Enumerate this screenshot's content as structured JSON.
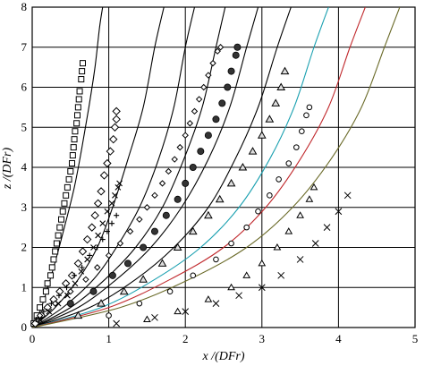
{
  "chart_data": {
    "type": "scatter",
    "title": "",
    "xlabel": "x /(DFr)",
    "ylabel": "z /(DFr)",
    "xlim": [
      0,
      5
    ],
    "ylim": [
      0,
      8
    ],
    "x_ticks": [
      "0",
      "1",
      "2",
      "3",
      "4",
      "5"
    ],
    "y_ticks": [
      "0",
      "1",
      "2",
      "3",
      "4",
      "5",
      "6",
      "7",
      "8"
    ],
    "grid": true,
    "legend": "none",
    "curves": [
      {
        "color": "#000000",
        "x": [
          0,
          0.12,
          0.28,
          0.42,
          0.55,
          0.65,
          0.74,
          0.82,
          0.88,
          0.92
        ],
        "y": [
          0,
          0.5,
          1.5,
          2.5,
          3.5,
          4.5,
          5.5,
          6.5,
          7.5,
          8
        ]
      },
      {
        "color": "#000000",
        "x": [
          0,
          0.3,
          0.6,
          0.85,
          1.05,
          1.25,
          1.45,
          1.6,
          1.72
        ],
        "y": [
          0,
          0.5,
          1.2,
          2.0,
          3.0,
          4.2,
          5.5,
          7.0,
          8
        ]
      },
      {
        "color": "#000000",
        "x": [
          0,
          0.4,
          0.8,
          1.1,
          1.4,
          1.65,
          1.85,
          2.0,
          2.12
        ],
        "y": [
          0,
          0.5,
          1.2,
          2.0,
          3.0,
          4.2,
          5.5,
          7.0,
          8
        ]
      },
      {
        "color": "#000000",
        "x": [
          0,
          0.5,
          0.95,
          1.35,
          1.7,
          1.98,
          2.22,
          2.4,
          2.52
        ],
        "y": [
          0,
          0.5,
          1.2,
          2.0,
          3.0,
          4.2,
          5.5,
          7.0,
          8
        ]
      },
      {
        "color": "#000000",
        "x": [
          0,
          0.6,
          1.1,
          1.55,
          1.95,
          2.3,
          2.58,
          2.8,
          2.95
        ],
        "y": [
          0,
          0.5,
          1.2,
          2.0,
          3.0,
          4.2,
          5.5,
          7.0,
          8
        ]
      },
      {
        "color": "#000000",
        "x": [
          0,
          0.75,
          1.35,
          1.85,
          2.3,
          2.65,
          2.95,
          3.2,
          3.38
        ],
        "y": [
          0,
          0.5,
          1.2,
          2.0,
          3.0,
          4.2,
          5.5,
          7.0,
          8
        ]
      },
      {
        "color": "#1aa0b0",
        "x": [
          0,
          0.9,
          1.6,
          2.2,
          2.7,
          3.1,
          3.42,
          3.68,
          3.87
        ],
        "y": [
          0,
          0.5,
          1.2,
          2.0,
          3.0,
          4.2,
          5.5,
          7.0,
          8
        ]
      },
      {
        "color": "#c0282c",
        "x": [
          0,
          1.0,
          1.8,
          2.5,
          3.05,
          3.5,
          3.87,
          4.15,
          4.35
        ],
        "y": [
          0,
          0.5,
          1.2,
          2.0,
          3.0,
          4.2,
          5.5,
          7.0,
          8
        ]
      },
      {
        "color": "#6b6b2a",
        "x": [
          0,
          1.15,
          2.05,
          2.8,
          3.4,
          3.9,
          4.3,
          4.6,
          4.8
        ],
        "y": [
          0,
          0.5,
          1.2,
          2.0,
          3.0,
          4.2,
          5.5,
          7.0,
          8
        ]
      }
    ],
    "series": [
      {
        "marker": "square",
        "points": [
          [
            0.02,
            0.1
          ],
          [
            0.06,
            0.3
          ],
          [
            0.1,
            0.5
          ],
          [
            0.14,
            0.7
          ],
          [
            0.18,
            0.9
          ],
          [
            0.2,
            1.1
          ],
          [
            0.24,
            1.3
          ],
          [
            0.26,
            1.5
          ],
          [
            0.28,
            1.7
          ],
          [
            0.3,
            1.9
          ],
          [
            0.32,
            2.1
          ],
          [
            0.34,
            2.3
          ],
          [
            0.36,
            2.5
          ],
          [
            0.38,
            2.7
          ],
          [
            0.4,
            2.9
          ],
          [
            0.42,
            3.1
          ],
          [
            0.44,
            3.3
          ],
          [
            0.46,
            3.5
          ],
          [
            0.48,
            3.7
          ],
          [
            0.5,
            3.9
          ],
          [
            0.52,
            4.1
          ],
          [
            0.53,
            4.3
          ],
          [
            0.54,
            4.5
          ],
          [
            0.55,
            4.7
          ],
          [
            0.56,
            4.9
          ],
          [
            0.58,
            5.1
          ],
          [
            0.59,
            5.3
          ],
          [
            0.6,
            5.5
          ],
          [
            0.61,
            5.7
          ],
          [
            0.62,
            5.9
          ],
          [
            0.64,
            6.2
          ],
          [
            0.65,
            6.4
          ],
          [
            0.66,
            6.6
          ]
        ]
      },
      {
        "marker": "diamond",
        "points": [
          [
            0.04,
            0.1
          ],
          [
            0.12,
            0.3
          ],
          [
            0.2,
            0.5
          ],
          [
            0.28,
            0.7
          ],
          [
            0.36,
            0.9
          ],
          [
            0.44,
            1.1
          ],
          [
            0.52,
            1.3
          ],
          [
            0.6,
            1.6
          ],
          [
            0.66,
            1.9
          ],
          [
            0.72,
            2.2
          ],
          [
            0.78,
            2.5
          ],
          [
            0.82,
            2.8
          ],
          [
            0.86,
            3.1
          ],
          [
            0.9,
            3.4
          ],
          [
            0.94,
            3.8
          ],
          [
            0.98,
            4.1
          ],
          [
            1.02,
            4.4
          ],
          [
            1.06,
            4.7
          ],
          [
            1.08,
            5.0
          ],
          [
            1.1,
            5.2
          ],
          [
            1.1,
            5.4
          ]
        ]
      },
      {
        "marker": "x",
        "points": [
          [
            0.1,
            0.2
          ],
          [
            0.22,
            0.4
          ],
          [
            0.34,
            0.6
          ],
          [
            0.46,
            0.8
          ],
          [
            0.56,
            1.1
          ],
          [
            0.64,
            1.4
          ],
          [
            0.72,
            1.7
          ],
          [
            0.8,
            2.0
          ],
          [
            0.86,
            2.3
          ],
          [
            0.92,
            2.6
          ],
          [
            0.98,
            2.9
          ],
          [
            1.04,
            3.1
          ],
          [
            1.08,
            3.3
          ],
          [
            1.12,
            3.5
          ],
          [
            1.14,
            3.6
          ]
        ]
      },
      {
        "marker": "plus",
        "points": [
          [
            0.05,
            0.2
          ],
          [
            0.15,
            0.4
          ],
          [
            0.25,
            0.6
          ],
          [
            0.35,
            0.8
          ],
          [
            0.45,
            1.0
          ],
          [
            0.55,
            1.3
          ],
          [
            0.65,
            1.5
          ],
          [
            0.75,
            1.8
          ],
          [
            0.85,
            2.0
          ],
          [
            0.92,
            2.2
          ],
          [
            0.98,
            2.4
          ],
          [
            1.04,
            2.6
          ],
          [
            1.1,
            2.8
          ]
        ]
      },
      {
        "marker": "small-diamond",
        "points": [
          [
            0.1,
            0.3
          ],
          [
            0.3,
            0.6
          ],
          [
            0.5,
            0.9
          ],
          [
            0.7,
            1.2
          ],
          [
            0.85,
            1.5
          ],
          [
            1.0,
            1.8
          ],
          [
            1.15,
            2.1
          ],
          [
            1.28,
            2.4
          ],
          [
            1.4,
            2.7
          ],
          [
            1.5,
            3.0
          ],
          [
            1.6,
            3.3
          ],
          [
            1.7,
            3.6
          ],
          [
            1.78,
            3.9
          ],
          [
            1.86,
            4.2
          ],
          [
            1.93,
            4.5
          ],
          [
            2.0,
            4.8
          ],
          [
            2.06,
            5.1
          ],
          [
            2.12,
            5.4
          ],
          [
            2.18,
            5.7
          ],
          [
            2.24,
            6.0
          ],
          [
            2.3,
            6.3
          ],
          [
            2.36,
            6.6
          ],
          [
            2.42,
            6.9
          ],
          [
            2.46,
            7.0
          ]
        ]
      },
      {
        "marker": "circle-filled",
        "points": [
          [
            0.5,
            0.6
          ],
          [
            0.8,
            0.9
          ],
          [
            1.05,
            1.3
          ],
          [
            1.25,
            1.6
          ],
          [
            1.45,
            2.0
          ],
          [
            1.6,
            2.4
          ],
          [
            1.75,
            2.8
          ],
          [
            1.9,
            3.2
          ],
          [
            2.0,
            3.6
          ],
          [
            2.1,
            4.0
          ],
          [
            2.2,
            4.4
          ],
          [
            2.3,
            4.8
          ],
          [
            2.4,
            5.2
          ],
          [
            2.48,
            5.6
          ],
          [
            2.55,
            6.0
          ],
          [
            2.6,
            6.4
          ],
          [
            2.66,
            6.8
          ],
          [
            2.68,
            7.0
          ]
        ]
      },
      {
        "marker": "triangle",
        "points": [
          [
            0.6,
            0.3
          ],
          [
            0.9,
            0.6
          ],
          [
            1.2,
            0.9
          ],
          [
            1.45,
            1.2
          ],
          [
            1.7,
            1.6
          ],
          [
            1.9,
            2.0
          ],
          [
            2.1,
            2.4
          ],
          [
            2.3,
            2.8
          ],
          [
            2.45,
            3.2
          ],
          [
            2.6,
            3.6
          ],
          [
            2.75,
            4.0
          ],
          [
            2.88,
            4.4
          ],
          [
            3.0,
            4.8
          ],
          [
            3.1,
            5.2
          ],
          [
            3.18,
            5.6
          ],
          [
            3.25,
            6.0
          ],
          [
            3.3,
            6.4
          ]
        ]
      },
      {
        "marker": "circle-open",
        "points": [
          [
            1.0,
            0.3
          ],
          [
            1.4,
            0.6
          ],
          [
            1.8,
            0.9
          ],
          [
            2.1,
            1.3
          ],
          [
            2.4,
            1.7
          ],
          [
            2.6,
            2.1
          ],
          [
            2.8,
            2.5
          ],
          [
            2.95,
            2.9
          ],
          [
            3.1,
            3.3
          ],
          [
            3.22,
            3.7
          ],
          [
            3.35,
            4.1
          ],
          [
            3.45,
            4.5
          ],
          [
            3.52,
            4.9
          ],
          [
            3.58,
            5.3
          ],
          [
            3.62,
            5.5
          ]
        ]
      },
      {
        "marker": "triangle-small",
        "points": [
          [
            1.5,
            0.2
          ],
          [
            1.9,
            0.4
          ],
          [
            2.3,
            0.7
          ],
          [
            2.6,
            1.0
          ],
          [
            2.8,
            1.3
          ],
          [
            3.0,
            1.6
          ],
          [
            3.2,
            2.0
          ],
          [
            3.35,
            2.4
          ],
          [
            3.5,
            2.8
          ],
          [
            3.62,
            3.2
          ],
          [
            3.68,
            3.5
          ]
        ]
      },
      {
        "marker": "cross",
        "points": [
          [
            1.1,
            0.1
          ],
          [
            1.6,
            0.25
          ],
          [
            2.0,
            0.4
          ],
          [
            2.4,
            0.6
          ],
          [
            2.7,
            0.8
          ],
          [
            3.0,
            1.0
          ],
          [
            3.25,
            1.3
          ],
          [
            3.5,
            1.7
          ],
          [
            3.7,
            2.1
          ],
          [
            3.85,
            2.5
          ],
          [
            4.0,
            2.9
          ],
          [
            4.12,
            3.3
          ]
        ]
      }
    ]
  }
}
